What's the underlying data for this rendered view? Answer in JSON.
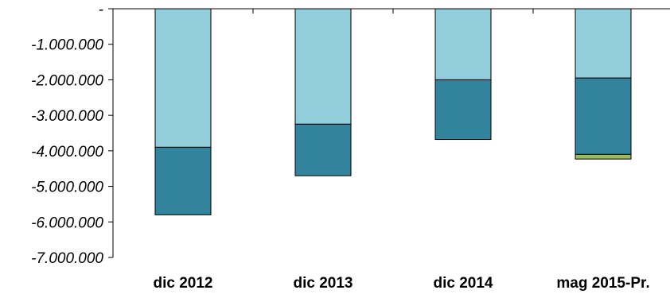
{
  "chart_data": {
    "type": "bar",
    "stacked": true,
    "categories": [
      "dic 2012",
      "dic 2013",
      "dic 2014",
      "mag 2015-Pr."
    ],
    "series": [
      {
        "color": "#92CDDC",
        "values": [
          -3900000,
          -3250000,
          -2000000,
          -1950000
        ]
      },
      {
        "color": "#31849B",
        "values": [
          -1900000,
          -1450000,
          -1680000,
          -2150000
        ]
      },
      {
        "color": "#9BBB59",
        "values": [
          0,
          0,
          0,
          -130000
        ]
      }
    ],
    "ylim": [
      -7000000,
      0
    ],
    "yticks": [
      0,
      -1000000,
      -2000000,
      -3000000,
      -4000000,
      -5000000,
      -6000000,
      -7000000
    ],
    "ytick_labels": [
      "-",
      "-1.000.000",
      "-2.000.000",
      "-3.000.000",
      "-4.000.000",
      "-5.000.000",
      "-6.000.000",
      "-7.000.000"
    ],
    "grid": false
  }
}
